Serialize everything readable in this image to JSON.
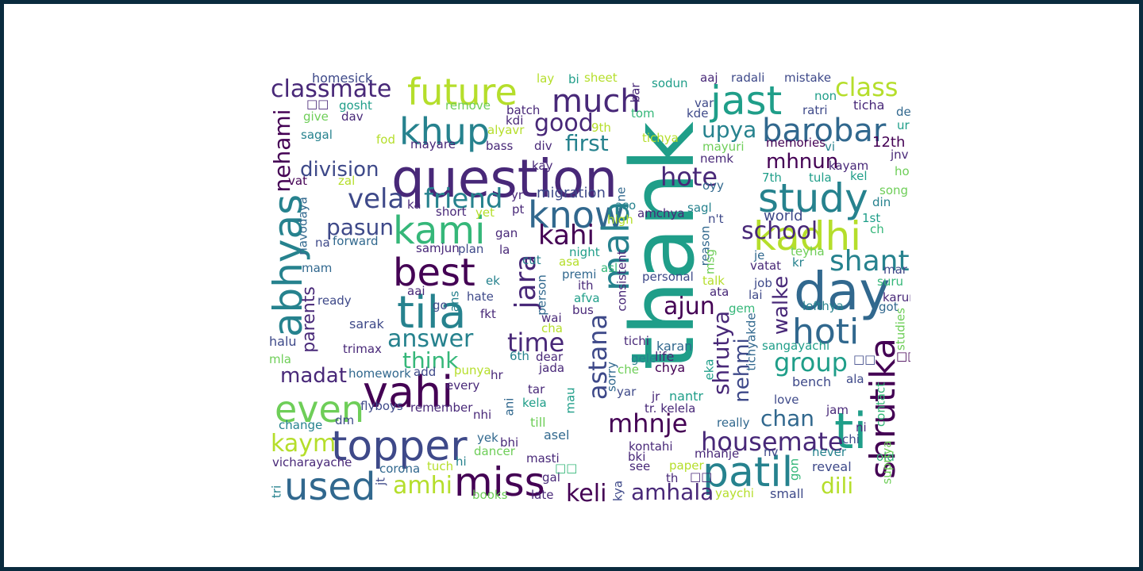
{
  "palette": {
    "frame": "#0a2b3e",
    "background": "#ffffff",
    "text_colors": [
      "#440154",
      "#482878",
      "#3e4989",
      "#31688e",
      "#26828e",
      "#1f9e89",
      "#35b779",
      "#6ece58",
      "#b5de2b",
      "#fde725"
    ]
  },
  "words": [
    {
      "id": "mark",
      "text": "mark"
    },
    {
      "id": "thank",
      "text": "thank"
    },
    {
      "id": "question",
      "text": "question"
    },
    {
      "id": "day",
      "text": "day"
    },
    {
      "id": "ti",
      "text": "ti"
    },
    {
      "id": "shrutika",
      "text": "shrutika"
    },
    {
      "id": "future",
      "text": "future"
    },
    {
      "id": "khup",
      "text": "khup"
    },
    {
      "id": "jast",
      "text": "jast"
    },
    {
      "id": "much",
      "text": "much"
    },
    {
      "id": "barobar",
      "text": "barobar"
    },
    {
      "id": "class",
      "text": "class"
    },
    {
      "id": "classmate",
      "text": "classmate"
    },
    {
      "id": "nehami",
      "text": "nehami"
    },
    {
      "id": "good",
      "text": "good"
    },
    {
      "id": "upya",
      "text": "upya"
    },
    {
      "id": "first",
      "text": "first"
    },
    {
      "id": "study",
      "text": "study"
    },
    {
      "id": "kadhi",
      "text": "kadhi"
    },
    {
      "id": "hote",
      "text": "hote"
    },
    {
      "id": "school",
      "text": "school"
    },
    {
      "id": "kami",
      "text": "kami"
    },
    {
      "id": "know",
      "text": "know"
    },
    {
      "id": "friend",
      "text": "friend"
    },
    {
      "id": "vela",
      "text": "vela"
    },
    {
      "id": "pasun",
      "text": "pasun"
    },
    {
      "id": "abhyas",
      "text": "abhyas"
    },
    {
      "id": "best",
      "text": "best"
    },
    {
      "id": "tila",
      "text": "tila"
    },
    {
      "id": "kahi",
      "text": "kahi"
    },
    {
      "id": "mala",
      "text": "mala"
    },
    {
      "id": "shant",
      "text": "shant"
    },
    {
      "id": "hoti",
      "text": "hoti"
    },
    {
      "id": "division",
      "text": "division"
    },
    {
      "id": "mhnun",
      "text": "mhnun"
    },
    {
      "id": "jara",
      "text": "jara"
    },
    {
      "id": "vahi",
      "text": "vahi"
    },
    {
      "id": "even",
      "text": "even"
    },
    {
      "id": "answer",
      "text": "answer"
    },
    {
      "id": "time",
      "text": "time"
    },
    {
      "id": "astana",
      "text": "astana"
    },
    {
      "id": "shrutya",
      "text": "shrutya"
    },
    {
      "id": "ajun",
      "text": "ajun"
    },
    {
      "id": "walke",
      "text": "walke"
    },
    {
      "id": "group",
      "text": "group"
    },
    {
      "id": "parents",
      "text": "parents"
    },
    {
      "id": "think",
      "text": "think"
    },
    {
      "id": "madat",
      "text": "madat"
    },
    {
      "id": "nehmi",
      "text": "nehmi"
    },
    {
      "id": "topper",
      "text": "topper"
    },
    {
      "id": "kaym",
      "text": "kaym"
    },
    {
      "id": "used",
      "text": "used"
    },
    {
      "id": "miss",
      "text": "miss"
    },
    {
      "id": "amhi",
      "text": "amhi"
    },
    {
      "id": "mhnje",
      "text": "mhnje"
    },
    {
      "id": "housemate",
      "text": "housemate"
    },
    {
      "id": "chan",
      "text": "chan"
    },
    {
      "id": "patil",
      "text": "patil"
    },
    {
      "id": "keli",
      "text": "keli"
    },
    {
      "id": "amhala",
      "text": "amhala"
    },
    {
      "id": "dili",
      "text": "dili"
    },
    {
      "id": "migration",
      "text": "migration"
    },
    {
      "id": "world",
      "text": "world"
    },
    {
      "id": "12th",
      "text": "12th"
    },
    {
      "id": "homesick",
      "text": "homesick"
    },
    {
      "id": "gosht",
      "text": "gosht"
    },
    {
      "id": "dav",
      "text": "dav"
    },
    {
      "id": "give",
      "text": "give"
    },
    {
      "id": "sagal",
      "text": "sagal"
    },
    {
      "id": "fod",
      "text": "fod"
    },
    {
      "id": "remove",
      "text": "remove"
    },
    {
      "id": "batch",
      "text": "batch"
    },
    {
      "id": "kdi",
      "text": "kdi"
    },
    {
      "id": "alyavr",
      "text": "alyavr"
    },
    {
      "id": "bass",
      "text": "bass"
    },
    {
      "id": "mayare",
      "text": "mayare"
    },
    {
      "id": "div",
      "text": "div"
    },
    {
      "id": "kay",
      "text": "kay"
    },
    {
      "id": "lay",
      "text": "lay"
    },
    {
      "id": "bi",
      "text": "bi"
    },
    {
      "id": "sheet",
      "text": "sheet"
    },
    {
      "id": "sodun",
      "text": "sodun"
    },
    {
      "id": "aaj",
      "text": "aaj"
    },
    {
      "id": "radali",
      "text": "radali"
    },
    {
      "id": "mistake",
      "text": "mistake"
    },
    {
      "id": "non",
      "text": "non"
    },
    {
      "id": "ratri",
      "text": "ratri"
    },
    {
      "id": "ticha",
      "text": "ticha"
    },
    {
      "id": "de",
      "text": "de"
    },
    {
      "id": "ur",
      "text": "ur"
    },
    {
      "id": "var",
      "text": "var"
    },
    {
      "id": "kde",
      "text": "kde"
    },
    {
      "id": "tom",
      "text": "tom"
    },
    {
      "id": "9th",
      "text": "9th"
    },
    {
      "id": "tichya",
      "text": "tichya"
    },
    {
      "id": "mayuri",
      "text": "mayuri"
    },
    {
      "id": "memories",
      "text": "memories"
    },
    {
      "id": "vi",
      "text": "vi"
    },
    {
      "id": "jnv",
      "text": "jnv"
    },
    {
      "id": "nemk",
      "text": "nemk"
    },
    {
      "id": "kayam",
      "text": "kayam"
    },
    {
      "id": "kel",
      "text": "kel"
    },
    {
      "id": "ho",
      "text": "ho"
    },
    {
      "id": "7th",
      "text": "7th"
    },
    {
      "id": "tula",
      "text": "tula"
    },
    {
      "id": "oyy",
      "text": "oyy"
    },
    {
      "id": "song",
      "text": "song"
    },
    {
      "id": "din",
      "text": "din"
    },
    {
      "id": "vat",
      "text": "vat"
    },
    {
      "id": "zal",
      "text": "zal"
    },
    {
      "id": "yr",
      "text": "yr"
    },
    {
      "id": "ka",
      "text": "ka"
    },
    {
      "id": "pt",
      "text": "pt"
    },
    {
      "id": "short",
      "text": "short"
    },
    {
      "id": "yet",
      "text": "yet"
    },
    {
      "id": "aso",
      "text": "aso"
    },
    {
      "id": "ne",
      "text": "ne"
    },
    {
      "id": "amchya",
      "text": "amchya"
    },
    {
      "id": "sagl",
      "text": "sagl"
    },
    {
      "id": "high",
      "text": "high"
    },
    {
      "id": "n_t",
      "text": "n't"
    },
    {
      "id": "1st",
      "text": "1st"
    },
    {
      "id": "navodaya",
      "text": "navodaya"
    },
    {
      "id": "forward",
      "text": "forward"
    },
    {
      "id": "na",
      "text": "na"
    },
    {
      "id": "gan",
      "text": "gan"
    },
    {
      "id": "ch",
      "text": "ch"
    },
    {
      "id": "samjun",
      "text": "samjun"
    },
    {
      "id": "plan",
      "text": "plan"
    },
    {
      "id": "la",
      "text": "la"
    },
    {
      "id": "reason",
      "text": "reason"
    },
    {
      "id": "teyha",
      "text": "teyha"
    },
    {
      "id": "je",
      "text": "je"
    },
    {
      "id": "kr",
      "text": "kr"
    },
    {
      "id": "vatat",
      "text": "vatat"
    },
    {
      "id": "mam",
      "text": "mam"
    },
    {
      "id": "cut",
      "text": "cut"
    },
    {
      "id": "asa",
      "text": "asa"
    },
    {
      "id": "night",
      "text": "night"
    },
    {
      "id": "asl",
      "text": "asl"
    },
    {
      "id": "msg",
      "text": "msg"
    },
    {
      "id": "mar",
      "text": "mar"
    },
    {
      "id": "premi",
      "text": "premi"
    },
    {
      "id": "personal",
      "text": "personal"
    },
    {
      "id": "job",
      "text": "job"
    },
    {
      "id": "aai",
      "text": "aai"
    },
    {
      "id": "ek",
      "text": "ek"
    },
    {
      "id": "ith",
      "text": "ith"
    },
    {
      "id": "talk",
      "text": "talk"
    },
    {
      "id": "suru",
      "text": "suru"
    },
    {
      "id": "ready",
      "text": "ready"
    },
    {
      "id": "hate",
      "text": "hate"
    },
    {
      "id": "afva",
      "text": "afva"
    },
    {
      "id": "ata",
      "text": "ata"
    },
    {
      "id": "lai",
      "text": "lai"
    },
    {
      "id": "karun",
      "text": "karun"
    },
    {
      "id": "go",
      "text": "go"
    },
    {
      "id": "ans",
      "text": "ans"
    },
    {
      "id": "person",
      "text": "person"
    },
    {
      "id": "wai",
      "text": "wai"
    },
    {
      "id": "bus",
      "text": "bus"
    },
    {
      "id": "consistent",
      "text": "consistent"
    },
    {
      "id": "gem",
      "text": "gem"
    },
    {
      "id": "lefthya",
      "text": "lefthya"
    },
    {
      "id": "got",
      "text": "got"
    },
    {
      "id": "fkt",
      "text": "fkt"
    },
    {
      "id": "sarak",
      "text": "sarak"
    },
    {
      "id": "cha",
      "text": "cha"
    },
    {
      "id": "studies",
      "text": "studies"
    },
    {
      "id": "halu",
      "text": "halu"
    },
    {
      "id": "tichi",
      "text": "tichi"
    },
    {
      "id": "karan",
      "text": "karan"
    },
    {
      "id": "tichyakde",
      "text": "tichyakde"
    },
    {
      "id": "trimax",
      "text": "trimax"
    },
    {
      "id": "6th",
      "text": "6th"
    },
    {
      "id": "dear",
      "text": "dear"
    },
    {
      "id": "sangayachi",
      "text": "sangayachi"
    },
    {
      "id": "mla",
      "text": "mla"
    },
    {
      "id": "gele",
      "text": "gele"
    },
    {
      "id": "life",
      "text": "life"
    },
    {
      "id": "chya",
      "text": "chya"
    },
    {
      "id": "homework",
      "text": "homework"
    },
    {
      "id": "add",
      "text": "add"
    },
    {
      "id": "punya",
      "text": "punya"
    },
    {
      "id": "hr",
      "text": "hr"
    },
    {
      "id": "jada",
      "text": "jada"
    },
    {
      "id": "che",
      "text": "che"
    },
    {
      "id": "eka",
      "text": "eka"
    },
    {
      "id": "bench",
      "text": "bench"
    },
    {
      "id": "ala",
      "text": "ala"
    },
    {
      "id": "tar",
      "text": "tar"
    },
    {
      "id": "every",
      "text": "every"
    },
    {
      "id": "mau",
      "text": "mau"
    },
    {
      "id": "sorry",
      "text": "sorry"
    },
    {
      "id": "yar",
      "text": "yar"
    },
    {
      "id": "jr",
      "text": "jr"
    },
    {
      "id": "nantr",
      "text": "nantr"
    },
    {
      "id": "love",
      "text": "love"
    },
    {
      "id": "ani",
      "text": "ani"
    },
    {
      "id": "kela",
      "text": "kela"
    },
    {
      "id": "flyboys",
      "text": "flyboys"
    },
    {
      "id": "remember",
      "text": "remember"
    },
    {
      "id": "tr_kelela",
      "text": "tr. kelela"
    },
    {
      "id": "jam",
      "text": "jam"
    },
    {
      "id": "contact",
      "text": "contact"
    },
    {
      "id": "change",
      "text": "change"
    },
    {
      "id": "dm",
      "text": "dm"
    },
    {
      "id": "nhi",
      "text": "nhi"
    },
    {
      "id": "till",
      "text": "till"
    },
    {
      "id": "really",
      "text": "really"
    },
    {
      "id": "ni",
      "text": "ni"
    },
    {
      "id": "yek",
      "text": "yek"
    },
    {
      "id": "bhi",
      "text": "bhi"
    },
    {
      "id": "asel",
      "text": "asel"
    },
    {
      "id": "kontahi",
      "text": "kontahi"
    },
    {
      "id": "chi",
      "text": "chi"
    },
    {
      "id": "old",
      "text": "old"
    },
    {
      "id": "vicharayache",
      "text": "vicharayache"
    },
    {
      "id": "dancer",
      "text": "dancer"
    },
    {
      "id": "masti",
      "text": "masti"
    },
    {
      "id": "bki",
      "text": "bki"
    },
    {
      "id": "mhanje",
      "text": "mhanje"
    },
    {
      "id": "nv",
      "text": "nv"
    },
    {
      "id": "never",
      "text": "never"
    },
    {
      "id": "hi",
      "text": "hi"
    },
    {
      "id": "tuch",
      "text": "tuch"
    },
    {
      "id": "see",
      "text": "see"
    },
    {
      "id": "paper",
      "text": "paper"
    },
    {
      "id": "gon",
      "text": "gon"
    },
    {
      "id": "reveal",
      "text": "reveal"
    },
    {
      "id": "supriya",
      "text": "supriya"
    },
    {
      "id": "corona",
      "text": "corona"
    },
    {
      "id": "gal",
      "text": "gal"
    },
    {
      "id": "th",
      "text": "th"
    },
    {
      "id": "jt",
      "text": "jt"
    },
    {
      "id": "tri",
      "text": "tri"
    },
    {
      "id": "books",
      "text": "books"
    },
    {
      "id": "late",
      "text": "late"
    },
    {
      "id": "kya",
      "text": "kya"
    },
    {
      "id": "yaychi",
      "text": "yaychi"
    },
    {
      "id": "small",
      "text": "small"
    },
    {
      "id": "bar",
      "text": "bar"
    },
    {
      "id": "sq1",
      "text": "□□"
    },
    {
      "id": "sq2",
      "text": "□□"
    },
    {
      "id": "sq3",
      "text": "□□"
    },
    {
      "id": "sq4",
      "text": "□□"
    },
    {
      "id": "sq5",
      "text": "□□"
    }
  ]
}
